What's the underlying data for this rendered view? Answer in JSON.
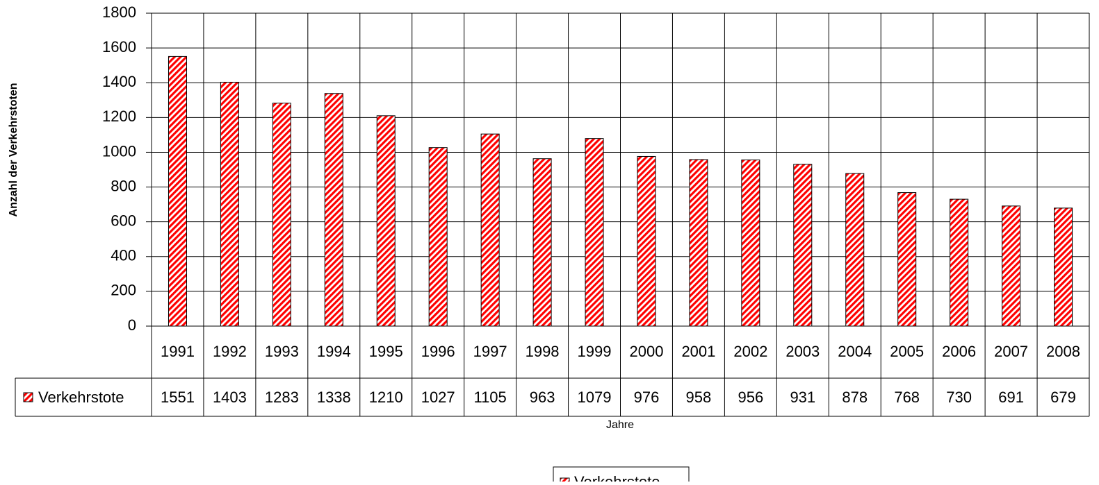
{
  "chart_data": {
    "type": "bar",
    "x_label": "Jahre",
    "y_label": "Anzahl der Verkehrstoten",
    "categories": [
      "1991",
      "1992",
      "1993",
      "1994",
      "1995",
      "1996",
      "1997",
      "1998",
      "1999",
      "2000",
      "2001",
      "2002",
      "2003",
      "2004",
      "2005",
      "2006",
      "2007",
      "2008"
    ],
    "series": [
      {
        "name": "Verkehrstote",
        "color": "#ff0000",
        "values": [
          1551,
          1403,
          1283,
          1338,
          1210,
          1027,
          1105,
          963,
          1079,
          976,
          958,
          956,
          931,
          878,
          768,
          730,
          691,
          679
        ]
      }
    ],
    "ylim": [
      0,
      1800
    ],
    "yticks": [
      0,
      200,
      400,
      600,
      800,
      1000,
      1200,
      1400,
      1600,
      1800
    ],
    "grid": true,
    "legend": "bottom"
  }
}
